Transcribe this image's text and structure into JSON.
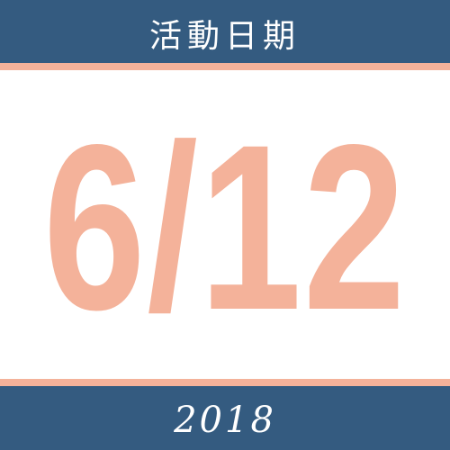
{
  "header": {
    "title": "活動日期"
  },
  "date": {
    "text": "6/12"
  },
  "footer": {
    "year": "2018"
  },
  "colors": {
    "band": "#345b80",
    "accent": "#f4b29a",
    "background": "#ffffff"
  }
}
